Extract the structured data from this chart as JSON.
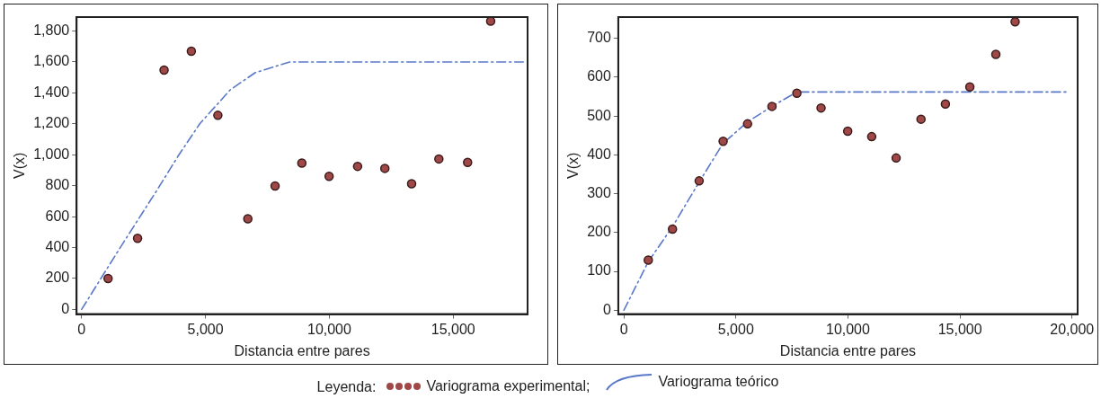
{
  "chart_data": [
    {
      "type": "scatter",
      "xlabel": "Distancia entre pares",
      "ylabel": "V(x)",
      "legend_title": "Leyenda:",
      "legend": "bottom",
      "grid": false,
      "marker": "circle",
      "xlim": [
        -200,
        18000
      ],
      "xticks": [
        0,
        {
          "value": 5000,
          "label": "5,000"
        },
        {
          "value": 10000,
          "label": "10,000"
        },
        {
          "value": 15000,
          "label": "15,000"
        }
      ],
      "ylim": [
        -30,
        1890
      ],
      "yticks": [
        0,
        200,
        400,
        600,
        800,
        {
          "value": 1000,
          "label": "1,000"
        },
        {
          "value": 1200,
          "label": "1,200"
        },
        {
          "value": 1400,
          "label": "1,400"
        },
        {
          "value": 1600,
          "label": "1,600"
        },
        {
          "value": 1800,
          "label": "1,800"
        }
      ],
      "series": [
        {
          "name": "Variograma experimental;",
          "type": "scatter",
          "color": "#a04848",
          "x": [
            1070,
            2260,
            3330,
            4430,
            5500,
            6710,
            7810,
            8890,
            9990,
            11140,
            12240,
            13320,
            14420,
            15580,
            16510
          ],
          "values": [
            200,
            460,
            1547,
            1669,
            1255,
            586,
            798,
            946,
            861,
            925,
            912,
            813,
            973,
            951,
            1864
          ]
        },
        {
          "name": "Variograma teórico",
          "type": "line",
          "color": "#5a78c8",
          "line_style": "dashed",
          "marker": "none",
          "x": [
            0,
            1560,
            3000,
            3930,
            4770,
            6000,
            7000,
            8400,
            17830
          ],
          "values": [
            0,
            400,
            760,
            1000,
            1200,
            1420,
            1530,
            1600,
            1600
          ]
        }
      ]
    },
    {
      "type": "scatter",
      "xlabel": "Distancia entre pares",
      "ylabel": "V(x)",
      "grid": false,
      "marker": "circle",
      "xlim": [
        -250,
        20250
      ],
      "xticks": [
        0,
        {
          "value": 5000,
          "label": "5,000"
        },
        {
          "value": 10000,
          "label": "10,000"
        },
        {
          "value": 15000,
          "label": "15,000"
        },
        {
          "value": 20000,
          "label": "20,000"
        }
      ],
      "ylim": [
        -10,
        755
      ],
      "yticks": [
        0,
        100,
        200,
        300,
        400,
        500,
        600,
        700
      ],
      "series": [
        {
          "type": "scatter",
          "color": "#a04848",
          "x": [
            1090,
            2170,
            3360,
            4430,
            5520,
            6610,
            7720,
            8800,
            9990,
            11060,
            12150,
            13260,
            14350,
            15440,
            16600,
            17460
          ],
          "values": [
            129,
            209,
            333,
            435,
            480,
            525,
            559,
            521,
            461,
            447,
            392,
            492,
            531,
            575,
            659,
            743
          ]
        },
        {
          "type": "line",
          "color": "#5a78c8",
          "line_style": "dashed",
          "marker": "none",
          "x": [
            0,
            1090,
            2170,
            3360,
            4430,
            5520,
            6610,
            7720,
            19800
          ],
          "values": [
            0,
            125,
            215,
            330,
            430,
            485,
            525,
            562,
            562
          ]
        }
      ]
    }
  ]
}
